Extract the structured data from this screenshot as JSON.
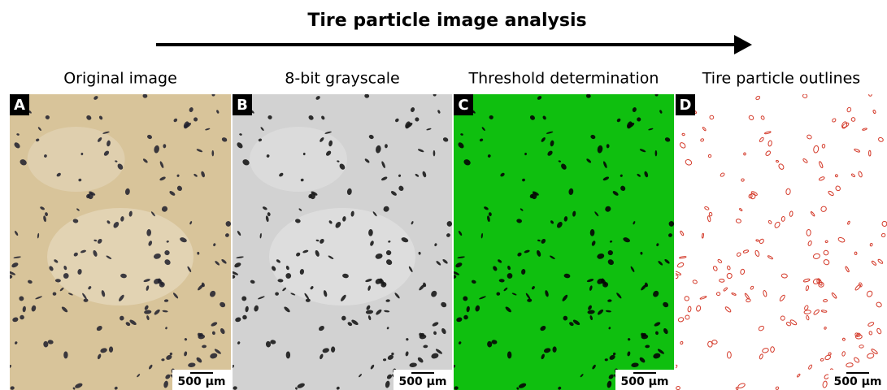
{
  "header": {
    "title": "Tire particle image analysis"
  },
  "panels": [
    {
      "letter": "A",
      "label": "Original image",
      "scale": "500 µm"
    },
    {
      "letter": "B",
      "label": "8-bit grayscale",
      "scale": "500 µm"
    },
    {
      "letter": "C",
      "label": "Threshold determination",
      "scale": "500 µm"
    },
    {
      "letter": "D",
      "label": "Tire particle outlines",
      "scale": "500 µm"
    }
  ]
}
